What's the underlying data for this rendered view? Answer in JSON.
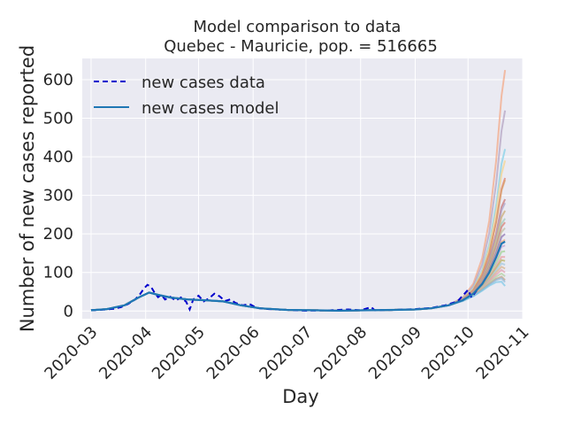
{
  "chart_data": {
    "type": "line",
    "title": "Model comparison to data",
    "subtitle": "Quebec - Mauricie, pop. = 516665",
    "xlabel": "Day",
    "ylabel": "Number of new cases reported",
    "x_axis_type": "date",
    "xlim": [
      "2020-02-25",
      "2020-11-01"
    ],
    "ylim": [
      -20,
      655
    ],
    "x_ticks": [
      "2020-03",
      "2020-04",
      "2020-05",
      "2020-06",
      "2020-07",
      "2020-08",
      "2020-09",
      "2020-10",
      "2020-11"
    ],
    "y_ticks": [
      0,
      100,
      200,
      300,
      400,
      500,
      600
    ],
    "grid": true,
    "legend_position": "top-left",
    "legend": [
      "new cases data",
      "new cases model"
    ],
    "colors": {
      "background": "#eaeaf2",
      "grid": "#ffffff",
      "data_line": "#0000cd",
      "model_line": "#1f77b4"
    },
    "series": [
      {
        "name": "new cases data",
        "style": "dashed",
        "points": [
          [
            "2020-03-01",
            2
          ],
          [
            "2020-03-05",
            3
          ],
          [
            "2020-03-10",
            4
          ],
          [
            "2020-03-14",
            6
          ],
          [
            "2020-03-18",
            10
          ],
          [
            "2020-03-22",
            18
          ],
          [
            "2020-03-26",
            30
          ],
          [
            "2020-03-29",
            45
          ],
          [
            "2020-03-31",
            58
          ],
          [
            "2020-04-02",
            68
          ],
          [
            "2020-04-04",
            63
          ],
          [
            "2020-04-06",
            48
          ],
          [
            "2020-04-08",
            36
          ],
          [
            "2020-04-10",
            42
          ],
          [
            "2020-04-12",
            30
          ],
          [
            "2020-04-15",
            37
          ],
          [
            "2020-04-18",
            27
          ],
          [
            "2020-04-21",
            35
          ],
          [
            "2020-04-24",
            24
          ],
          [
            "2020-04-26",
            4
          ],
          [
            "2020-04-28",
            30
          ],
          [
            "2020-05-01",
            40
          ],
          [
            "2020-05-04",
            25
          ],
          [
            "2020-05-07",
            33
          ],
          [
            "2020-05-10",
            45
          ],
          [
            "2020-05-13",
            38
          ],
          [
            "2020-05-16",
            26
          ],
          [
            "2020-05-19",
            30
          ],
          [
            "2020-05-22",
            21
          ],
          [
            "2020-05-26",
            15
          ],
          [
            "2020-05-30",
            18
          ],
          [
            "2020-06-03",
            8
          ],
          [
            "2020-06-10",
            5
          ],
          [
            "2020-06-20",
            3
          ],
          [
            "2020-07-01",
            1
          ],
          [
            "2020-07-15",
            2
          ],
          [
            "2020-07-25",
            4
          ],
          [
            "2020-08-01",
            2
          ],
          [
            "2020-08-07",
            10
          ],
          [
            "2020-08-09",
            2
          ],
          [
            "2020-08-20",
            3
          ],
          [
            "2020-09-01",
            5
          ],
          [
            "2020-09-10",
            8
          ],
          [
            "2020-09-18",
            15
          ],
          [
            "2020-09-25",
            25
          ],
          [
            "2020-09-28",
            40
          ],
          [
            "2020-10-01",
            55
          ],
          [
            "2020-10-03",
            35
          ],
          [
            "2020-10-05",
            48
          ],
          [
            "2020-10-07",
            60
          ]
        ]
      },
      {
        "name": "new cases model",
        "style": "solid",
        "points": [
          [
            "2020-03-01",
            2
          ],
          [
            "2020-03-10",
            5
          ],
          [
            "2020-03-20",
            15
          ],
          [
            "2020-03-28",
            35
          ],
          [
            "2020-04-03",
            48
          ],
          [
            "2020-04-08",
            42
          ],
          [
            "2020-04-15",
            35
          ],
          [
            "2020-04-25",
            30
          ],
          [
            "2020-05-05",
            28
          ],
          [
            "2020-05-15",
            25
          ],
          [
            "2020-05-25",
            15
          ],
          [
            "2020-06-05",
            7
          ],
          [
            "2020-06-20",
            3
          ],
          [
            "2020-07-05",
            2
          ],
          [
            "2020-07-20",
            1
          ],
          [
            "2020-08-05",
            2
          ],
          [
            "2020-08-20",
            3
          ],
          [
            "2020-09-01",
            4
          ],
          [
            "2020-09-10",
            7
          ],
          [
            "2020-09-20",
            15
          ],
          [
            "2020-09-28",
            28
          ],
          [
            "2020-10-04",
            45
          ],
          [
            "2020-10-09",
            70
          ],
          [
            "2020-10-13",
            100
          ],
          [
            "2020-10-17",
            140
          ],
          [
            "2020-10-20",
            175
          ],
          [
            "2020-10-22",
            180
          ]
        ]
      }
    ],
    "ensemble_endpoints": [
      625,
      520,
      420,
      390,
      345,
      340,
      290,
      280,
      260,
      240,
      230,
      215,
      200,
      185,
      170,
      155,
      140,
      130,
      120,
      110,
      100,
      90,
      80,
      75,
      65
    ],
    "ensemble_colors": [
      "#f4a582",
      "#b0a0c0",
      "#7fd0e8",
      "#f5d38a",
      "#e07b6b",
      "#d9a066",
      "#c87070",
      "#aaa0c8",
      "#c9a870",
      "#9ec9b8",
      "#d77b6d",
      "#bdbd9e",
      "#8a6fb0",
      "#f0a878",
      "#c5a3d0",
      "#9fd18f",
      "#e89aa0",
      "#b8b060",
      "#a3c8e0",
      "#d8b08a",
      "#e0a0b0",
      "#b0d0a0",
      "#c0a080",
      "#90b8d8",
      "#7ac8e8"
    ]
  }
}
